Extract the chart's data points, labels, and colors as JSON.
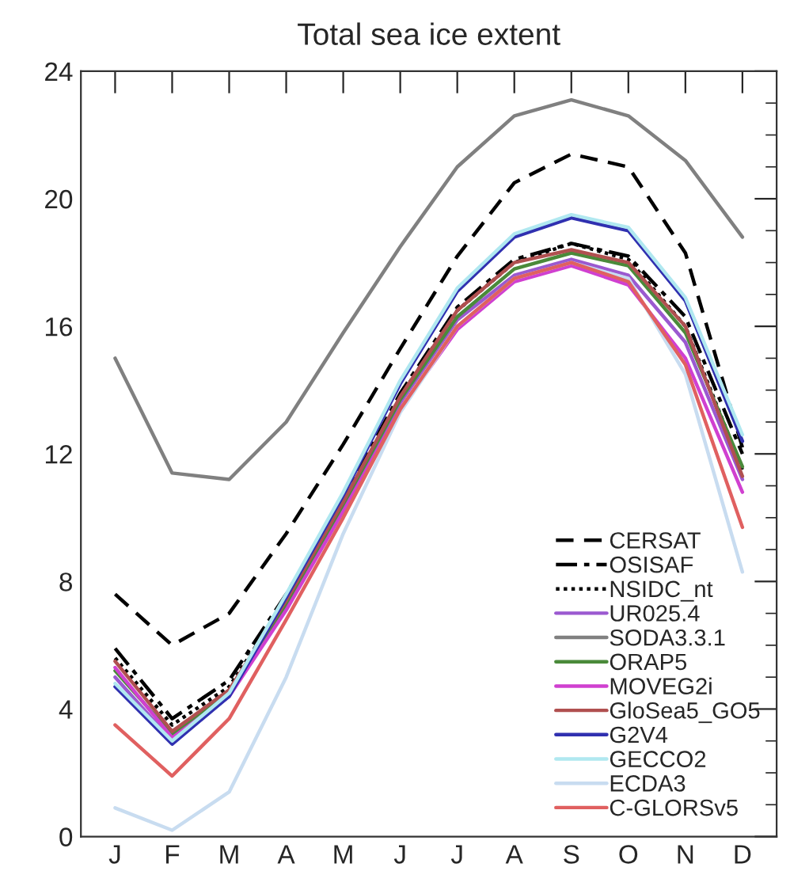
{
  "chart_data": {
    "type": "line",
    "title": "Total sea ice extent",
    "categories": [
      "J",
      "F",
      "M",
      "A",
      "M",
      "J",
      "J",
      "A",
      "S",
      "O",
      "N",
      "D"
    ],
    "ylim": [
      0,
      24
    ],
    "yticks": [
      0,
      {
        "value": 1,
        "label": null
      },
      {
        "value": 2,
        "label": null
      },
      {
        "value": 3,
        "label": null
      },
      4,
      {
        "value": 5,
        "label": null
      },
      {
        "value": 6,
        "label": null
      },
      {
        "value": 7,
        "label": null
      },
      8,
      {
        "value": 9,
        "label": null
      },
      {
        "value": 10,
        "label": null
      },
      {
        "value": 11,
        "label": null
      },
      12,
      {
        "value": 13,
        "label": null
      },
      {
        "value": 14,
        "label": null
      },
      {
        "value": 15,
        "label": null
      },
      16,
      {
        "value": 17,
        "label": null
      },
      {
        "value": 18,
        "label": null
      },
      {
        "value": 19,
        "label": null
      },
      20,
      {
        "value": 21,
        "label": null
      },
      {
        "value": 22,
        "label": null
      },
      {
        "value": 23,
        "label": null
      },
      24
    ],
    "grid": false,
    "legend": "bottom right",
    "marker": "none",
    "series": [
      {
        "name": "CERSAT",
        "color": "#000000",
        "line_style": "dashed",
        "values": [
          7.6,
          6.0,
          7.0,
          9.5,
          12.3,
          15.3,
          18.2,
          20.5,
          21.4,
          21.0,
          18.3,
          12.2
        ]
      },
      {
        "name": "OSISAF",
        "color": "#000000",
        "line_style": "dashdot",
        "values": [
          5.9,
          3.7,
          4.9,
          7.6,
          10.6,
          13.9,
          16.6,
          18.1,
          18.6,
          18.2,
          16.3,
          12.0
        ]
      },
      {
        "name": "NSIDC_nt",
        "color": "#000000",
        "line_style": "dotted",
        "values": [
          5.6,
          3.5,
          4.7,
          7.4,
          10.4,
          13.8,
          16.5,
          18.0,
          18.6,
          18.1,
          16.0,
          11.5
        ]
      },
      {
        "name": "UR025.4",
        "color": "#9b59d0",
        "values": [
          5.0,
          3.0,
          4.4,
          7.2,
          10.3,
          13.6,
          16.2,
          17.6,
          18.1,
          17.6,
          15.5,
          11.2
        ]
      },
      {
        "name": "SODA3.3.1",
        "color": "#808080",
        "values": [
          15.0,
          11.4,
          11.2,
          13.0,
          15.8,
          18.5,
          21.0,
          22.6,
          23.1,
          22.6,
          21.2,
          18.8
        ]
      },
      {
        "name": "ORAP5",
        "color": "#4a8a3a",
        "values": [
          5.2,
          3.2,
          4.5,
          7.3,
          10.4,
          13.7,
          16.3,
          17.8,
          18.3,
          17.9,
          15.8,
          11.6
        ]
      },
      {
        "name": "MOVEG2i",
        "color": "#d040d0",
        "values": [
          5.3,
          3.1,
          4.4,
          7.1,
          10.2,
          13.4,
          15.9,
          17.4,
          17.9,
          17.3,
          15.0,
          10.8
        ]
      },
      {
        "name": "GloSea5_GO5",
        "color": "#b05050",
        "values": [
          5.5,
          3.3,
          4.6,
          7.4,
          10.5,
          13.8,
          16.5,
          18.0,
          18.4,
          18.0,
          16.0,
          11.3
        ]
      },
      {
        "name": "G2V4",
        "color": "#3030b0",
        "values": [
          4.7,
          2.9,
          4.4,
          7.5,
          10.7,
          14.2,
          17.1,
          18.8,
          19.4,
          19.0,
          16.8,
          12.4
        ]
      },
      {
        "name": "GECCO2",
        "color": "#b0e8f0",
        "values": [
          4.8,
          3.0,
          4.5,
          7.6,
          10.8,
          14.3,
          17.2,
          18.9,
          19.5,
          19.1,
          16.9,
          12.6
        ]
      },
      {
        "name": "ECDA3",
        "color": "#c8dcf0",
        "values": [
          0.9,
          0.2,
          1.4,
          5.0,
          9.5,
          13.3,
          16.0,
          17.5,
          18.0,
          17.5,
          14.5,
          8.3
        ]
      },
      {
        "name": "C-GLORSv5",
        "color": "#e06060",
        "values": [
          3.5,
          1.9,
          3.7,
          6.8,
          10.0,
          13.4,
          16.0,
          17.5,
          18.0,
          17.4,
          14.8,
          9.7
        ]
      }
    ]
  }
}
